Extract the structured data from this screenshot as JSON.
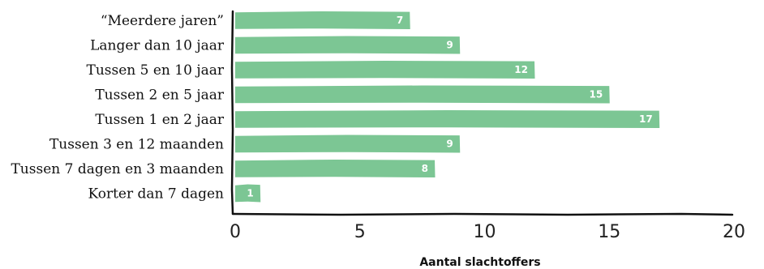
{
  "chart_data": {
    "type": "bar",
    "orientation": "horizontal",
    "categories": [
      "“Meerdere jaren”",
      "Langer dan 10 jaar",
      "Tussen 5 en 10 jaar",
      "Tussen 2 en 5 jaar",
      "Tussen 1 en 2 jaar",
      "Tussen 3 en 12 maanden",
      "Tussen 7 dagen en 3 maanden",
      "Korter dan 7 dagen"
    ],
    "values": [
      7,
      9,
      12,
      15,
      17,
      9,
      8,
      1
    ],
    "title": "",
    "xlabel": "Aantal slachtoffers",
    "ylabel": "",
    "xlim": [
      0,
      20
    ],
    "xticks": [
      0,
      5,
      10,
      15,
      20
    ],
    "grid": false,
    "bar_color": "#7cc694",
    "data_label_color": "#ffffff",
    "axis_color": "#111111"
  }
}
